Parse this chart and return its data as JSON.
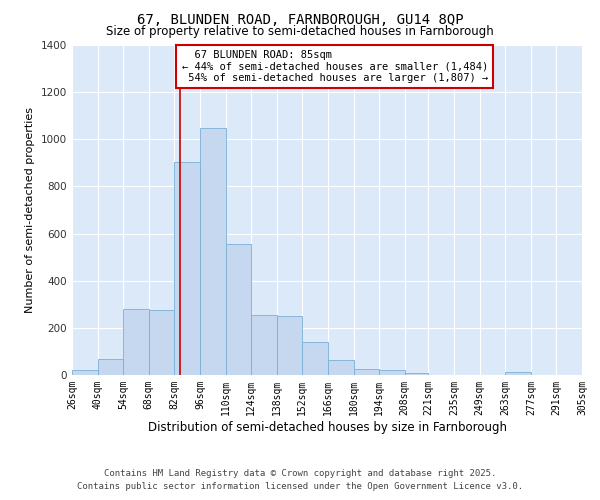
{
  "title_line1": "67, BLUNDEN ROAD, FARNBOROUGH, GU14 8QP",
  "title_line2": "Size of property relative to semi-detached houses in Farnborough",
  "xlabel": "Distribution of semi-detached houses by size in Farnborough",
  "ylabel": "Number of semi-detached properties",
  "bar_color": "#c5d8f0",
  "bar_edge_color": "#7aafd4",
  "background_color": "#dce9f8",
  "grid_color": "#ffffff",
  "annotation_box_color": "#cc0000",
  "vline_color": "#cc0000",
  "property_size": 85,
  "pct_smaller": 44,
  "count_smaller": 1484,
  "pct_larger": 54,
  "count_larger": 1807,
  "property_label": "67 BLUNDEN ROAD: 85sqm",
  "footer_line1": "Contains HM Land Registry data © Crown copyright and database right 2025.",
  "footer_line2": "Contains public sector information licensed under the Open Government Licence v3.0.",
  "bin_edges": [
    26,
    40,
    54,
    68,
    82,
    96,
    110,
    124,
    138,
    152,
    166,
    180,
    194,
    208,
    221,
    235,
    249,
    263,
    277,
    291,
    305
  ],
  "counts": [
    20,
    70,
    280,
    275,
    905,
    1050,
    555,
    255,
    250,
    140,
    65,
    25,
    20,
    10,
    0,
    0,
    0,
    12,
    0,
    0
  ],
  "tick_labels": [
    "26sqm",
    "40sqm",
    "54sqm",
    "68sqm",
    "82sqm",
    "96sqm",
    "110sqm",
    "124sqm",
    "138sqm",
    "152sqm",
    "166sqm",
    "180sqm",
    "194sqm",
    "208sqm",
    "221sqm",
    "235sqm",
    "249sqm",
    "263sqm",
    "277sqm",
    "291sqm",
    "305sqm"
  ],
  "ylim": [
    0,
    1400
  ],
  "yticks": [
    0,
    200,
    400,
    600,
    800,
    1000,
    1200,
    1400
  ],
  "title_fontsize": 10,
  "subtitle_fontsize": 8.5,
  "xlabel_fontsize": 8.5,
  "ylabel_fontsize": 8,
  "tick_fontsize": 7,
  "annotation_fontsize": 7.5,
  "footer_fontsize": 6.5
}
